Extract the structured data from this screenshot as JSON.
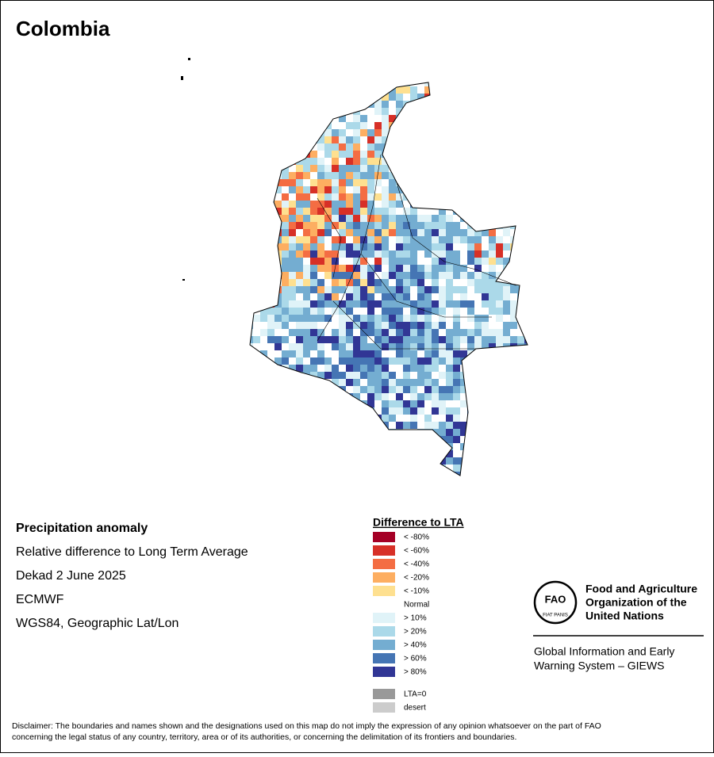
{
  "title": "Colombia",
  "info": [
    "Precipitation anomaly",
    "Relative difference to Long Term Average",
    "Dekad 2 June 2025",
    "ECMWF",
    "WGS84, Geographic Lat/Lon"
  ],
  "legend": {
    "title": "Difference to LTA",
    "items": [
      {
        "label": "< -80%",
        "color": "#a50026"
      },
      {
        "label": "< -60%",
        "color": "#d73027"
      },
      {
        "label": "< -40%",
        "color": "#f46d43"
      },
      {
        "label": "< -20%",
        "color": "#fdae61"
      },
      {
        "label": "< -10%",
        "color": "#fee090"
      },
      {
        "label": "Normal",
        "color": "#ffffff"
      },
      {
        "label": "> 10%",
        "color": "#e0f3f8"
      },
      {
        "label": "> 20%",
        "color": "#abd9e9"
      },
      {
        "label": "> 40%",
        "color": "#74add1"
      },
      {
        "label": "> 60%",
        "color": "#4575b4"
      },
      {
        "label": "> 80%",
        "color": "#313695"
      }
    ],
    "extra": [
      {
        "label": "LTA=0",
        "color": "#999999"
      },
      {
        "label": "desert",
        "color": "#cccccc"
      }
    ]
  },
  "logo": {
    "mark": "FAO",
    "motto": "FIAT PANIS",
    "org": [
      "Food and Agriculture",
      "Organization of the",
      "United Nations"
    ],
    "system": [
      "Global Information and Early",
      "Warning System – GIEWS"
    ]
  },
  "disclaimer": [
    "Disclaimer: The boundaries and names shown and the designations used on this map do not imply the expression of any opinion whatsoever on the part of FAO",
    "concerning the legal status of any country, territory, area or of its authorities, or concerning the delimitation of its frontiers and boundaries."
  ]
}
